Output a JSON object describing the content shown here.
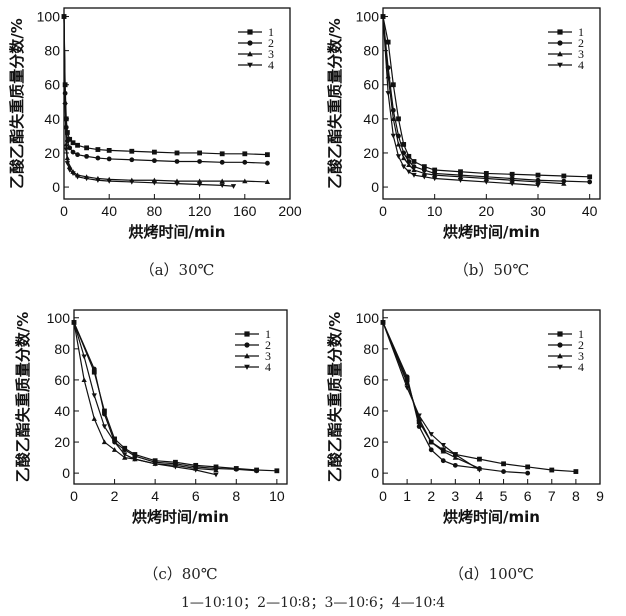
{
  "footnote": "1—10∶10；2—10∶8；3—10∶6；4—10∶4",
  "chart_data": [
    {
      "type": "line",
      "caption": "（a）30℃",
      "xlabel": "烘烤时间/min",
      "ylabel": "乙酸乙酯失重质量分数/%",
      "xlim": [
        0,
        200
      ],
      "ylim": [
        -7,
        105
      ],
      "xticks": [
        0,
        40,
        80,
        120,
        160,
        200
      ],
      "yticks": [
        0,
        20,
        40,
        60,
        80,
        100
      ],
      "legend_position": "top-right",
      "series": [
        {
          "name": "1",
          "marker": "square",
          "x": [
            0,
            1,
            2,
            3,
            5,
            8,
            12,
            20,
            30,
            40,
            60,
            80,
            100,
            120,
            140,
            160,
            180
          ],
          "y": [
            100,
            60,
            40,
            32,
            28,
            26,
            24.5,
            23,
            22,
            21.5,
            21,
            20.5,
            20,
            20,
            19.5,
            19.5,
            19
          ]
        },
        {
          "name": "2",
          "marker": "circle",
          "x": [
            0,
            1,
            2,
            3,
            5,
            8,
            12,
            20,
            30,
            40,
            60,
            80,
            100,
            120,
            140,
            160,
            180
          ],
          "y": [
            100,
            55,
            35,
            27,
            23,
            20.5,
            19,
            18,
            17,
            16.5,
            16,
            15.5,
            15,
            15,
            14.5,
            14.5,
            14
          ]
        },
        {
          "name": "3",
          "marker": "triangle-up",
          "x": [
            0,
            1,
            2,
            3,
            5,
            8,
            12,
            20,
            30,
            40,
            60,
            80,
            100,
            120,
            140,
            160,
            180
          ],
          "y": [
            100,
            50,
            25,
            17,
            12,
            9,
            7,
            6,
            5,
            4.5,
            4,
            4,
            3.5,
            3.5,
            3.5,
            3.5,
            3
          ]
        },
        {
          "name": "4",
          "marker": "triangle-down",
          "x": [
            0,
            1,
            2,
            3,
            5,
            8,
            12,
            20,
            30,
            40,
            60,
            80,
            100,
            120,
            140,
            150
          ],
          "y": [
            100,
            48,
            22,
            14,
            10,
            8,
            6,
            5,
            4,
            3.5,
            3,
            2.5,
            2,
            1.5,
            1,
            0.5
          ]
        }
      ]
    },
    {
      "type": "line",
      "caption": "（b）50℃",
      "xlabel": "烘烤时间/min",
      "ylabel": "乙酸乙酯失重质量分数/%",
      "xlim": [
        0,
        42
      ],
      "ylim": [
        -7,
        105
      ],
      "xticks": [
        0,
        10,
        20,
        30,
        40
      ],
      "yticks": [
        0,
        20,
        40,
        60,
        80,
        100
      ],
      "legend_position": "top-right",
      "series": [
        {
          "name": "1",
          "marker": "square",
          "x": [
            0,
            1,
            2,
            3,
            4,
            5,
            6,
            8,
            10,
            15,
            20,
            25,
            30,
            35,
            40
          ],
          "y": [
            100,
            85,
            60,
            40,
            25,
            18,
            15,
            12,
            10,
            9,
            8,
            7.5,
            7,
            6.5,
            6
          ]
        },
        {
          "name": "2",
          "marker": "circle",
          "x": [
            0,
            1,
            2,
            3,
            4,
            5,
            6,
            8,
            10,
            15,
            20,
            25,
            30,
            35,
            40
          ],
          "y": [
            100,
            70,
            45,
            30,
            20,
            15,
            12,
            10,
            8,
            7,
            6,
            5,
            4,
            3.5,
            3
          ]
        },
        {
          "name": "3",
          "marker": "triangle-up",
          "x": [
            0,
            1,
            2,
            3,
            4,
            5,
            6,
            8,
            10,
            15,
            20,
            25,
            30,
            35
          ],
          "y": [
            100,
            65,
            40,
            25,
            17,
            13,
            10,
            8,
            7,
            6,
            5,
            4,
            3,
            2
          ]
        },
        {
          "name": "4",
          "marker": "triangle-down",
          "x": [
            0,
            1,
            2,
            3,
            4,
            5,
            6,
            8,
            10,
            15,
            20,
            25,
            30
          ],
          "y": [
            100,
            55,
            30,
            18,
            12,
            9,
            7,
            6,
            5,
            4,
            3,
            2,
            1
          ]
        }
      ]
    },
    {
      "type": "line",
      "caption": "（c）80℃",
      "xlabel": "烘烤时间/min",
      "ylabel": "乙酸乙酯失重质量分数/%",
      "xlim": [
        0,
        10.5
      ],
      "ylim": [
        -7,
        105
      ],
      "xticks": [
        0,
        2,
        4,
        6,
        8,
        10
      ],
      "yticks": [
        0,
        20,
        40,
        60,
        80,
        100
      ],
      "legend_position": "top-right",
      "series": [
        {
          "name": "1",
          "marker": "square",
          "x": [
            0,
            1,
            1.5,
            2,
            2.5,
            3,
            4,
            5,
            6,
            7,
            8,
            9,
            10
          ],
          "y": [
            97,
            65,
            40,
            22,
            16,
            12,
            8,
            7,
            5,
            4,
            3,
            2,
            1.5
          ]
        },
        {
          "name": "2",
          "marker": "circle",
          "x": [
            0,
            1,
            1.5,
            2,
            2.5,
            3,
            4,
            5,
            6,
            7,
            8,
            9
          ],
          "y": [
            97,
            67,
            38,
            20,
            15,
            11,
            7,
            6,
            4,
            3,
            2.5,
            1.5
          ]
        },
        {
          "name": "3",
          "marker": "triangle-up",
          "x": [
            0,
            0.5,
            1,
            1.5,
            2,
            2.5,
            3,
            4,
            5,
            6,
            7
          ],
          "y": [
            97,
            60,
            35,
            20,
            15,
            10,
            9,
            6,
            5,
            3,
            2
          ]
        },
        {
          "name": "4",
          "marker": "triangle-down",
          "x": [
            0,
            0.5,
            1,
            1.5,
            2,
            2.5,
            3,
            4,
            5,
            6,
            7
          ],
          "y": [
            97,
            75,
            50,
            30,
            20,
            12,
            9,
            6,
            4,
            2,
            -1
          ]
        }
      ]
    },
    {
      "type": "line",
      "caption": "（d）100℃",
      "xlabel": "烘烤时间/min",
      "ylabel": "乙酸乙酯失重质量分数/%",
      "xlim": [
        0,
        9
      ],
      "ylim": [
        -7,
        105
      ],
      "xticks": [
        0,
        1,
        2,
        3,
        4,
        5,
        6,
        7,
        8,
        9
      ],
      "yticks": [
        0,
        20,
        40,
        60,
        80,
        100
      ],
      "legend_position": "top-right",
      "series": [
        {
          "name": "1",
          "marker": "square",
          "x": [
            0,
            1,
            1.5,
            2,
            2.5,
            3,
            4,
            5,
            6,
            7,
            8
          ],
          "y": [
            97,
            60,
            33,
            20,
            15,
            12,
            9,
            6,
            4,
            2,
            1
          ]
        },
        {
          "name": "2",
          "marker": "circle",
          "x": [
            0,
            1,
            1.5,
            2,
            2.5,
            3,
            4,
            5,
            6
          ],
          "y": [
            97,
            62,
            30,
            15,
            8,
            5,
            3,
            1,
            0
          ]
        },
        {
          "name": "3",
          "marker": "triangle-up",
          "x": [
            0,
            1,
            1.5,
            2,
            2.5,
            3,
            4
          ],
          "y": [
            97,
            58,
            35,
            20,
            14,
            10,
            3
          ]
        },
        {
          "name": "4",
          "marker": "triangle-down",
          "x": [
            0,
            1,
            1.5,
            2,
            2.5,
            3,
            4
          ],
          "y": [
            97,
            55,
            37,
            25,
            18,
            12,
            2
          ]
        }
      ]
    }
  ]
}
